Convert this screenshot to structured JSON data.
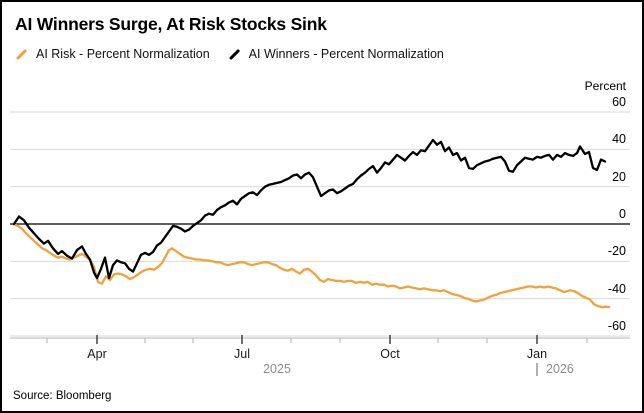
{
  "source": "Source: Bloomberg",
  "chart_data": {
    "type": "line",
    "title": "AI Winners Surge, At Risk Stocks Sink",
    "y_axis_title": "Percent",
    "ylim": [
      -60,
      60
    ],
    "y_gridlines": [
      60,
      40,
      20,
      0,
      -20,
      -40,
      -60
    ],
    "y_tick_labels": [
      "60",
      "40",
      "20",
      "0",
      "-20",
      "-40",
      "-60"
    ],
    "x_tick_labels_major": [
      "Apr",
      "Jul",
      "Oct",
      "Jan"
    ],
    "x_ticks_major": [
      83,
      228,
      376,
      523
    ],
    "x_ticks_minor": [
      33,
      131,
      179,
      277,
      326,
      424,
      473,
      573
    ],
    "x_axis_note": "time-axis units 0-595 spanning late Feb 2025 to mid Feb 2026",
    "years": [
      {
        "label": "2025",
        "x": 263,
        "divider": false
      },
      {
        "label": "2026",
        "x": 522,
        "divider": true
      }
    ],
    "grid_on": true,
    "legend_position": "top-left",
    "colors": {
      "grid": "#D9D9D9",
      "zero_line": "#000000",
      "axis": "#B3B3B3",
      "tick_major": "#404040",
      "year_text": "#8C8C8C"
    },
    "series": [
      {
        "id": "ai-risk",
        "name": "AI Risk - Percent Normalization",
        "color": "#F3A13B",
        "points": [
          [
            0,
            0
          ],
          [
            4,
            -1
          ],
          [
            8,
            -2.5
          ],
          [
            12,
            -5
          ],
          [
            16,
            -7
          ],
          [
            20,
            -9
          ],
          [
            24,
            -11
          ],
          [
            28,
            -13
          ],
          [
            32,
            -14
          ],
          [
            36,
            -15.5
          ],
          [
            40,
            -17
          ],
          [
            44,
            -18
          ],
          [
            48,
            -17.5
          ],
          [
            52,
            -18.5
          ],
          [
            56,
            -19
          ],
          [
            60,
            -18
          ],
          [
            64,
            -17
          ],
          [
            68,
            -16
          ],
          [
            72,
            -17.5
          ],
          [
            76,
            -19.5
          ],
          [
            80,
            -23
          ],
          [
            84,
            -31
          ],
          [
            88,
            -32
          ],
          [
            92,
            -28
          ],
          [
            96,
            -30
          ],
          [
            100,
            -27
          ],
          [
            104,
            -26.5
          ],
          [
            108,
            -27
          ],
          [
            112,
            -28
          ],
          [
            116,
            -29.5
          ],
          [
            120,
            -28.5
          ],
          [
            124,
            -27
          ],
          [
            128,
            -25.5
          ],
          [
            132,
            -24.5
          ],
          [
            136,
            -24
          ],
          [
            140,
            -24.5
          ],
          [
            144,
            -23
          ],
          [
            148,
            -21
          ],
          [
            152,
            -17
          ],
          [
            155,
            -14
          ],
          [
            158,
            -13
          ],
          [
            162,
            -14.5
          ],
          [
            166,
            -16
          ],
          [
            170,
            -17.5
          ],
          [
            174,
            -18
          ],
          [
            178,
            -18.5
          ],
          [
            182,
            -19
          ],
          [
            186,
            -19
          ],
          [
            190,
            -19.5
          ],
          [
            194,
            -19.5
          ],
          [
            198,
            -20
          ],
          [
            202,
            -20.5
          ],
          [
            206,
            -20.5
          ],
          [
            210,
            -21.5
          ],
          [
            214,
            -22
          ],
          [
            218,
            -21.5
          ],
          [
            222,
            -21
          ],
          [
            226,
            -20.5
          ],
          [
            230,
            -20.5
          ],
          [
            234,
            -21.5
          ],
          [
            238,
            -22
          ],
          [
            242,
            -21.5
          ],
          [
            246,
            -21
          ],
          [
            250,
            -20.5
          ],
          [
            254,
            -20.5
          ],
          [
            258,
            -21.5
          ],
          [
            262,
            -22
          ],
          [
            266,
            -23.5
          ],
          [
            270,
            -24.5
          ],
          [
            274,
            -25
          ],
          [
            278,
            -24
          ],
          [
            282,
            -25.5
          ],
          [
            286,
            -26.5
          ],
          [
            290,
            -24.5
          ],
          [
            294,
            -24
          ],
          [
            298,
            -25.5
          ],
          [
            302,
            -27.5
          ],
          [
            306,
            -30
          ],
          [
            310,
            -31
          ],
          [
            314,
            -29.5
          ],
          [
            318,
            -30
          ],
          [
            322,
            -30.5
          ],
          [
            326,
            -30.5
          ],
          [
            330,
            -31
          ],
          [
            334,
            -30.5
          ],
          [
            338,
            -30.5
          ],
          [
            342,
            -31.5
          ],
          [
            346,
            -31
          ],
          [
            350,
            -31.5
          ],
          [
            354,
            -31
          ],
          [
            358,
            -32.5
          ],
          [
            362,
            -32
          ],
          [
            366,
            -32.5
          ],
          [
            370,
            -32.5
          ],
          [
            374,
            -33.5
          ],
          [
            378,
            -33
          ],
          [
            382,
            -33.5
          ],
          [
            386,
            -34.5
          ],
          [
            390,
            -34
          ],
          [
            394,
            -33.5
          ],
          [
            398,
            -34
          ],
          [
            402,
            -34.5
          ],
          [
            406,
            -35
          ],
          [
            410,
            -34.5
          ],
          [
            414,
            -35
          ],
          [
            418,
            -35.5
          ],
          [
            422,
            -35.5
          ],
          [
            426,
            -36
          ],
          [
            430,
            -35.5
          ],
          [
            434,
            -36.5
          ],
          [
            438,
            -37.5
          ],
          [
            442,
            -38
          ],
          [
            446,
            -38.5
          ],
          [
            450,
            -39.5
          ],
          [
            454,
            -40
          ],
          [
            458,
            -41
          ],
          [
            462,
            -41.5
          ],
          [
            466,
            -41
          ],
          [
            470,
            -40.5
          ],
          [
            474,
            -39.5
          ],
          [
            478,
            -38.5
          ],
          [
            482,
            -38
          ],
          [
            486,
            -37
          ],
          [
            490,
            -36.5
          ],
          [
            494,
            -36
          ],
          [
            498,
            -35.5
          ],
          [
            502,
            -35
          ],
          [
            506,
            -34.5
          ],
          [
            510,
            -34
          ],
          [
            514,
            -33.5
          ],
          [
            518,
            -33.5
          ],
          [
            522,
            -34
          ],
          [
            526,
            -33.5
          ],
          [
            530,
            -34
          ],
          [
            534,
            -33.5
          ],
          [
            538,
            -34
          ],
          [
            542,
            -34.5
          ],
          [
            546,
            -35.5
          ],
          [
            550,
            -36.5
          ],
          [
            553,
            -36
          ],
          [
            556,
            -35.5
          ],
          [
            560,
            -36
          ],
          [
            564,
            -37
          ],
          [
            568,
            -38.5
          ],
          [
            572,
            -39.5
          ],
          [
            576,
            -40.5
          ],
          [
            580,
            -43
          ],
          [
            584,
            -44
          ],
          [
            588,
            -44.5
          ],
          [
            592,
            -44.3
          ],
          [
            595,
            -44.5
          ]
        ]
      },
      {
        "id": "ai-winners",
        "name": "AI Winners - Percent Normalization",
        "color": "#000000",
        "points": [
          [
            0,
            0
          ],
          [
            5,
            4
          ],
          [
            10,
            2
          ],
          [
            15,
            -2
          ],
          [
            20,
            -5
          ],
          [
            25,
            -8
          ],
          [
            30,
            -10.5
          ],
          [
            34,
            -9
          ],
          [
            39,
            -13
          ],
          [
            44,
            -16
          ],
          [
            48,
            -14.5
          ],
          [
            53,
            -17
          ],
          [
            58,
            -18.5
          ],
          [
            63,
            -14
          ],
          [
            68,
            -12
          ],
          [
            72,
            -16
          ],
          [
            76,
            -19
          ],
          [
            80,
            -26
          ],
          [
            83,
            -29
          ],
          [
            87,
            -24
          ],
          [
            91,
            -18
          ],
          [
            95,
            -29
          ],
          [
            99,
            -22
          ],
          [
            103,
            -19.5
          ],
          [
            107,
            -20.5
          ],
          [
            111,
            -21
          ],
          [
            115,
            -24
          ],
          [
            119,
            -25.5
          ],
          [
            123,
            -21
          ],
          [
            127,
            -16.5
          ],
          [
            131,
            -15.5
          ],
          [
            135,
            -16.5
          ],
          [
            139,
            -15
          ],
          [
            143,
            -11.5
          ],
          [
            147,
            -10
          ],
          [
            151,
            -7
          ],
          [
            155,
            -4
          ],
          [
            159,
            -1
          ],
          [
            163,
            -1.5
          ],
          [
            167,
            -2.5
          ],
          [
            171,
            -4
          ],
          [
            175,
            -3
          ],
          [
            179,
            -1
          ],
          [
            183,
            0.5
          ],
          [
            187,
            2
          ],
          [
            191,
            4.5
          ],
          [
            195,
            5.5
          ],
          [
            199,
            5
          ],
          [
            203,
            7.5
          ],
          [
            207,
            9
          ],
          [
            211,
            10
          ],
          [
            215,
            11.5
          ],
          [
            219,
            12.5
          ],
          [
            223,
            10.5
          ],
          [
            227,
            13.5
          ],
          [
            231,
            15
          ],
          [
            235,
            16.5
          ],
          [
            239,
            17
          ],
          [
            243,
            15.5
          ],
          [
            247,
            18
          ],
          [
            251,
            20
          ],
          [
            255,
            21
          ],
          [
            259,
            21.5
          ],
          [
            263,
            22
          ],
          [
            267,
            22.5
          ],
          [
            271,
            23.5
          ],
          [
            275,
            24.5
          ],
          [
            279,
            26
          ],
          [
            283,
            26.5
          ],
          [
            287,
            24.5
          ],
          [
            291,
            26.5
          ],
          [
            295,
            27.5
          ],
          [
            299,
            25
          ],
          [
            303,
            20
          ],
          [
            307,
            15
          ],
          [
            311,
            16.5
          ],
          [
            315,
            18
          ],
          [
            319,
            18.5
          ],
          [
            323,
            16.5
          ],
          [
            327,
            17.5
          ],
          [
            331,
            19
          ],
          [
            335,
            20.5
          ],
          [
            339,
            21.5
          ],
          [
            343,
            24
          ],
          [
            347,
            26
          ],
          [
            351,
            27.5
          ],
          [
            355,
            29.5
          ],
          [
            359,
            31
          ],
          [
            363,
            27.5
          ],
          [
            367,
            30
          ],
          [
            371,
            33
          ],
          [
            375,
            32
          ],
          [
            379,
            34.5
          ],
          [
            383,
            37
          ],
          [
            387,
            35.5
          ],
          [
            391,
            34
          ],
          [
            395,
            36.5
          ],
          [
            399,
            38.5
          ],
          [
            403,
            37
          ],
          [
            407,
            39.5
          ],
          [
            411,
            39
          ],
          [
            415,
            42
          ],
          [
            419,
            45
          ],
          [
            423,
            42.5
          ],
          [
            427,
            44
          ],
          [
            431,
            39
          ],
          [
            435,
            41
          ],
          [
            439,
            37
          ],
          [
            443,
            38
          ],
          [
            447,
            34
          ],
          [
            451,
            35.5
          ],
          [
            455,
            30
          ],
          [
            459,
            29.5
          ],
          [
            463,
            31.5
          ],
          [
            467,
            32.5
          ],
          [
            471,
            33.5
          ],
          [
            475,
            34
          ],
          [
            479,
            35
          ],
          [
            483,
            35.5
          ],
          [
            487,
            36
          ],
          [
            491,
            33.5
          ],
          [
            495,
            28.5
          ],
          [
            499,
            28
          ],
          [
            503,
            31.5
          ],
          [
            507,
            33.5
          ],
          [
            511,
            35.5
          ],
          [
            515,
            35
          ],
          [
            519,
            34.5
          ],
          [
            523,
            36
          ],
          [
            527,
            35.5
          ],
          [
            531,
            36.5
          ],
          [
            535,
            37
          ],
          [
            539,
            34.5
          ],
          [
            543,
            37
          ],
          [
            547,
            36
          ],
          [
            551,
            38
          ],
          [
            555,
            37
          ],
          [
            559,
            36.5
          ],
          [
            563,
            38
          ],
          [
            566,
            41.5
          ],
          [
            571,
            37.5
          ],
          [
            575,
            38.5
          ],
          [
            579,
            30
          ],
          [
            583,
            29
          ],
          [
            587,
            34.5
          ],
          [
            591,
            33.5
          ]
        ]
      }
    ]
  }
}
